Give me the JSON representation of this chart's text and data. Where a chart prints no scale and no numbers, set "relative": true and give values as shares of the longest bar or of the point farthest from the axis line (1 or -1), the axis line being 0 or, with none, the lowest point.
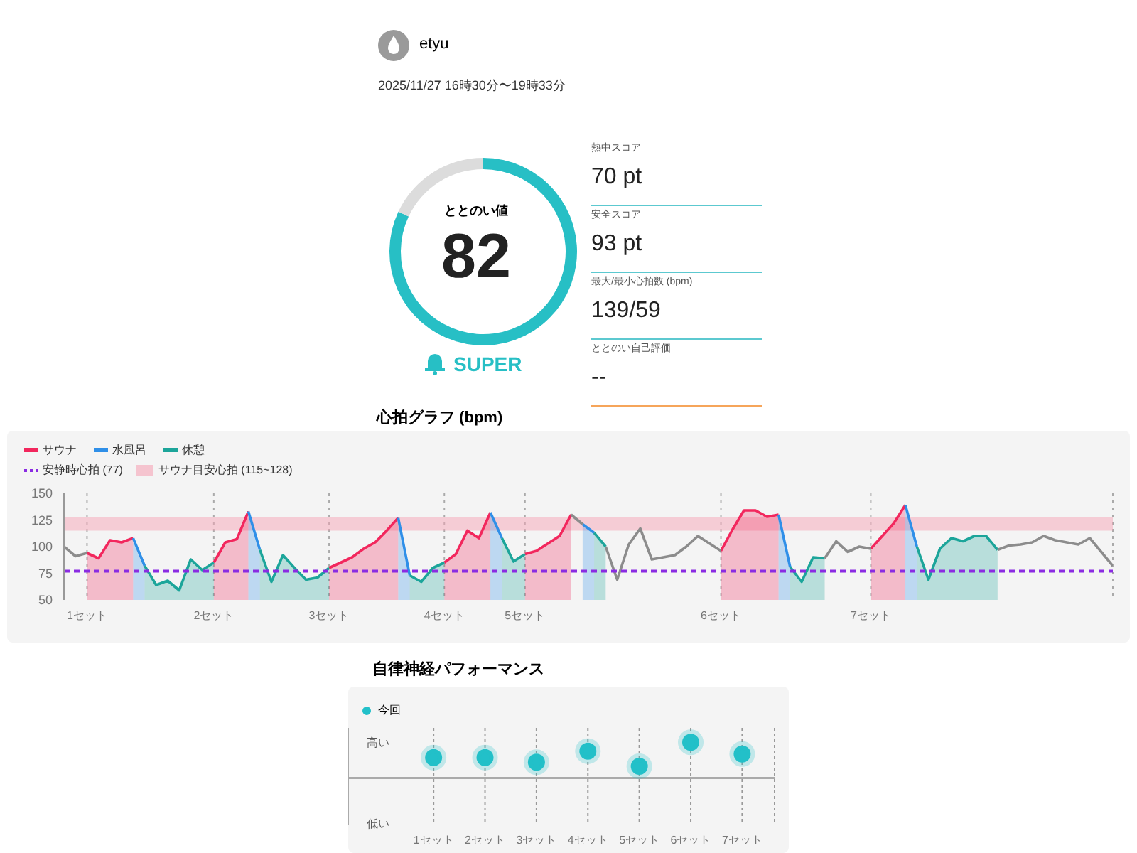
{
  "chart_data": [
    {
      "type": "other",
      "annotations": [
        "etyu",
        "2025/11/27 16時30分〜19時33分"
      ]
    },
    {
      "type": "donut",
      "title": "ととのい値",
      "categories": [
        null,
        null
      ],
      "values": [
        82,
        18
      ],
      "colors": [
        "#27bfc5",
        "#dcdcdc"
      ],
      "annotations": [
        "82",
        "SUPER"
      ]
    },
    {
      "type": "other",
      "annotations": [
        "熱中スコア",
        "70 pt",
        "安全スコア",
        "93 pt",
        "最大/最小心拍数 (bpm)",
        "139/59",
        "ととのい自己評価",
        "--"
      ]
    },
    {
      "type": "line",
      "title": "心拍グラフ (bpm)",
      "categories": [
        null,
        null,
        "1セット",
        null,
        null,
        null,
        null,
        null,
        null,
        null,
        null,
        null,
        null,
        "2セット",
        null,
        null,
        null,
        null,
        null,
        null,
        null,
        null,
        null,
        "3セット",
        null,
        null,
        null,
        null,
        null,
        null,
        null,
        null,
        null,
        "4セット",
        null,
        null,
        null,
        null,
        null,
        null,
        "5セット",
        null,
        null,
        null,
        null,
        null,
        null,
        null,
        null,
        null,
        null,
        null,
        null,
        null,
        null,
        null,
        null,
        "6セット",
        null,
        null,
        null,
        null,
        null,
        null,
        null,
        null,
        null,
        null,
        null,
        null,
        "7セット",
        null,
        null,
        null,
        null,
        null,
        null,
        null,
        null,
        null,
        null,
        null,
        null,
        null,
        null,
        null,
        null,
        null,
        null,
        null,
        null,
        null
      ],
      "ylim": [
        50,
        150
      ],
      "yticks": [
        50,
        75,
        100,
        125,
        150
      ],
      "grid": "x",
      "legend": "top left",
      "ref_lines": [
        {
          "axis": "y",
          "value": 77,
          "label": "安静時心拍 (77)",
          "color": "#8a2be2",
          "line_style": "dashed"
        }
      ],
      "bands": [
        {
          "axis": "y",
          "from": 115,
          "to": 128,
          "label": "サウナ目安心拍 (115~128)",
          "color": "#f5a3b5"
        }
      ],
      "series": [
        {
          "name": "サウナ",
          "type": "area",
          "color": "#f2275d",
          "values": [
            null,
            null,
            94,
            89,
            106,
            104,
            108,
            null,
            null,
            null,
            null,
            null,
            null,
            85,
            104,
            107,
            133,
            null,
            null,
            null,
            null,
            null,
            null,
            80,
            85,
            90,
            98,
            104,
            115,
            127,
            null,
            null,
            null,
            85,
            93,
            115,
            108,
            132,
            null,
            null,
            93,
            96,
            103,
            110,
            130,
            null,
            null,
            null,
            null,
            null,
            null,
            null,
            null,
            null,
            null,
            null,
            null,
            96,
            116,
            134,
            134,
            128,
            130,
            null,
            null,
            null,
            null,
            null,
            null,
            null,
            98,
            110,
            122,
            139,
            null,
            null,
            null,
            null,
            null,
            null,
            null,
            null,
            null,
            null,
            null,
            null,
            null,
            null,
            null,
            null,
            null,
            null
          ]
        },
        {
          "name": "水風呂",
          "type": "area",
          "color": "#2f8fe8",
          "values": [
            null,
            null,
            null,
            null,
            null,
            null,
            108,
            82,
            null,
            null,
            null,
            null,
            null,
            null,
            null,
            null,
            133,
            97,
            null,
            null,
            null,
            null,
            null,
            null,
            null,
            null,
            null,
            null,
            null,
            127,
            73,
            null,
            null,
            null,
            null,
            null,
            null,
            132,
            108,
            null,
            null,
            null,
            null,
            null,
            null,
            121,
            113,
            null,
            null,
            null,
            null,
            null,
            null,
            null,
            null,
            null,
            null,
            null,
            null,
            null,
            null,
            null,
            130,
            81,
            null,
            null,
            null,
            null,
            null,
            null,
            null,
            null,
            null,
            139,
            100,
            null,
            null,
            null,
            null,
            null,
            null,
            null,
            null,
            null,
            null,
            null,
            null,
            null,
            null,
            null,
            null,
            null
          ]
        },
        {
          "name": "休憩",
          "type": "area",
          "color": "#1ca59a",
          "values": [
            null,
            null,
            null,
            null,
            null,
            null,
            null,
            82,
            64,
            68,
            59,
            88,
            78,
            85,
            null,
            null,
            null,
            97,
            67,
            92,
            80,
            69,
            71,
            80,
            null,
            null,
            null,
            null,
            null,
            null,
            73,
            67,
            80,
            85,
            null,
            null,
            null,
            null,
            108,
            86,
            93,
            null,
            null,
            null,
            null,
            null,
            113,
            100,
            null,
            null,
            null,
            null,
            null,
            null,
            null,
            null,
            null,
            null,
            null,
            null,
            null,
            null,
            null,
            81,
            67,
            90,
            89,
            null,
            null,
            null,
            null,
            null,
            null,
            null,
            100,
            69,
            98,
            108,
            105,
            110,
            110,
            97,
            null,
            null,
            null,
            null,
            null,
            null,
            null,
            null,
            null,
            null
          ]
        },
        {
          "type": "line",
          "color": "#8c8c8c",
          "values": [
            100,
            91,
            94,
            null,
            null,
            null,
            null,
            null,
            null,
            null,
            null,
            null,
            null,
            null,
            null,
            null,
            null,
            null,
            null,
            null,
            null,
            null,
            null,
            null,
            null,
            null,
            null,
            null,
            null,
            null,
            null,
            null,
            null,
            null,
            null,
            null,
            null,
            null,
            null,
            null,
            null,
            null,
            null,
            null,
            130,
            121,
            null,
            100,
            69,
            102,
            117,
            88,
            90,
            92,
            100,
            110,
            103,
            96,
            null,
            null,
            null,
            null,
            null,
            null,
            null,
            null,
            89,
            105,
            95,
            100,
            98,
            null,
            null,
            null,
            null,
            null,
            null,
            null,
            null,
            null,
            null,
            97,
            101,
            102,
            104,
            110,
            106,
            104,
            102,
            108,
            95,
            82
          ]
        }
      ]
    },
    {
      "type": "scatter",
      "title": "自律神経パフォーマンス",
      "categories": [
        "1セット",
        "2セット",
        "3セット",
        "4セット",
        "5セット",
        "6セット",
        "7セット"
      ],
      "relative": true,
      "grid": "x",
      "legend": "top left",
      "marker": "circle",
      "annotations": [
        "高い",
        "低い"
      ],
      "series": [
        {
          "name": "今回",
          "color": "#22c0c9",
          "values": [
            0.57,
            0.57,
            0.44,
            0.75,
            0.33,
            1,
            0.67
          ]
        }
      ]
    }
  ]
}
